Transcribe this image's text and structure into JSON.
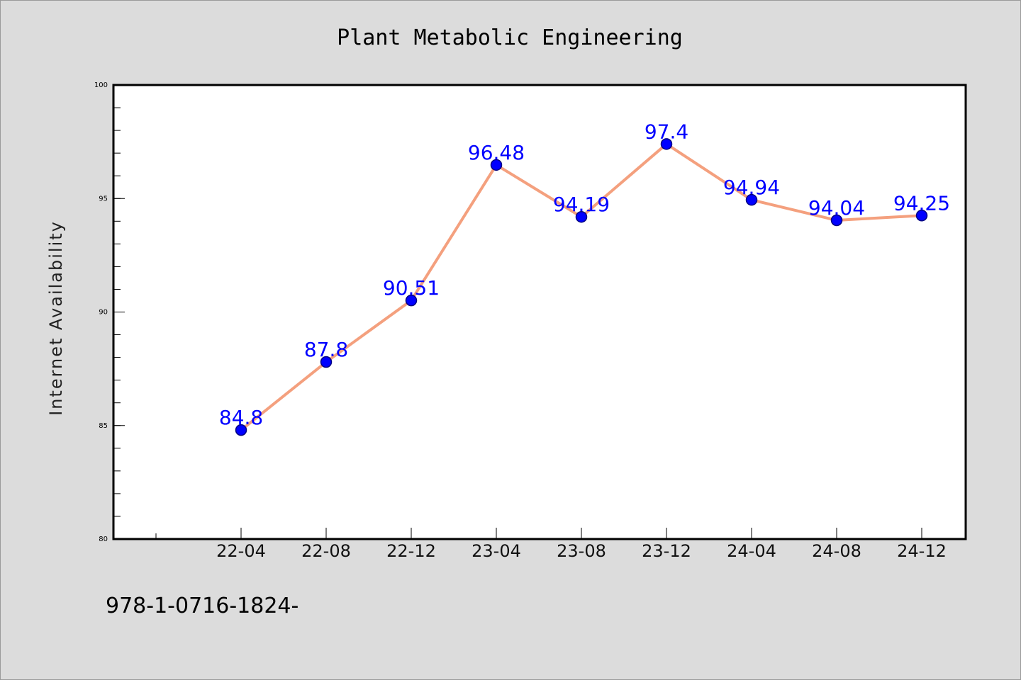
{
  "chart_data": {
    "type": "line",
    "title": "Plant Metabolic Engineering",
    "ylabel": "Internet Availability",
    "xlabel": "",
    "categories": [
      "22-04",
      "22-08",
      "22-12",
      "23-04",
      "23-08",
      "23-12",
      "24-04",
      "24-08",
      "24-12"
    ],
    "values": [
      84.8,
      87.8,
      90.51,
      96.48,
      94.19,
      97.4,
      94.94,
      94.04,
      94.25
    ],
    "ylim": [
      80,
      100
    ],
    "yticks": [
      80,
      85,
      90,
      95,
      100
    ],
    "grid": false,
    "legend": "none",
    "footer": "978-1-0716-1824-",
    "colors": {
      "line": "#f4a07e",
      "marker": "#0000ff",
      "marker_edge": "#000080",
      "data_label": "#0000ff",
      "background": "#dcdcdc",
      "plot_area": "#ffffff",
      "axis": "#000000"
    }
  }
}
